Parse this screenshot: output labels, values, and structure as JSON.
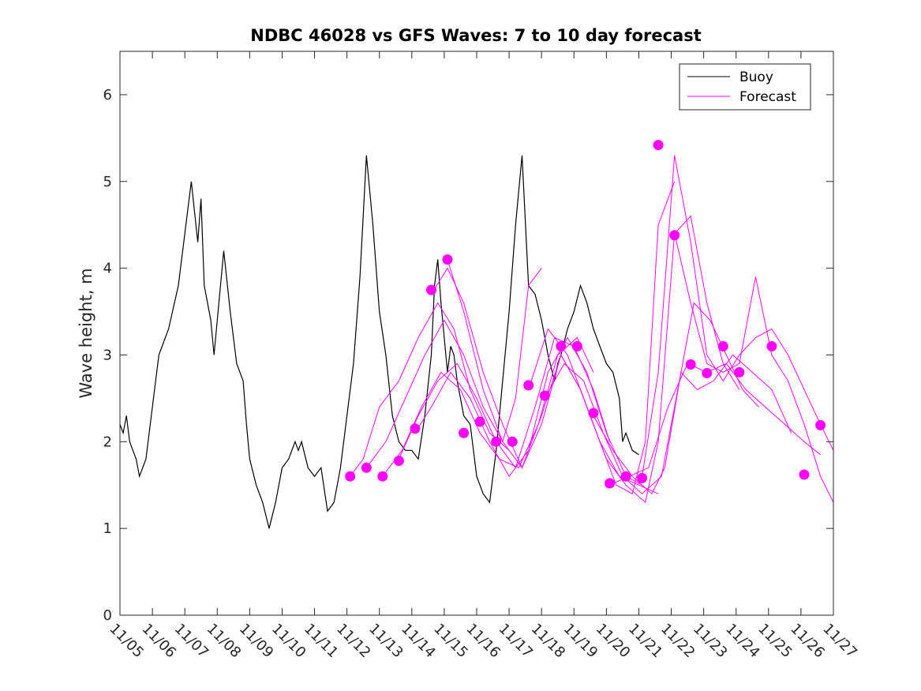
{
  "chart_data": {
    "type": "line",
    "title": "NDBC 46028 vs GFS Waves: 7 to 10 day forecast",
    "xlabel": "",
    "ylabel": "Wave height, m",
    "xlim": [
      0,
      22
    ],
    "ylim": [
      0,
      6.5
    ],
    "grid": false,
    "legend_position": "top-right",
    "x_tick_labels": [
      "11/05",
      "11/06",
      "11/07",
      "11/08",
      "11/09",
      "11/10",
      "11/11",
      "11/12",
      "11/13",
      "11/14",
      "11/15",
      "11/16",
      "11/17",
      "11/18",
      "11/19",
      "11/20",
      "11/21",
      "11/22",
      "11/23",
      "11/24",
      "11/25",
      "11/26",
      "11/27"
    ],
    "y_ticks": [
      0,
      1,
      2,
      3,
      4,
      5,
      6
    ],
    "colors": {
      "buoy": "#000000",
      "forecast": "#ff00ff",
      "marker": "#ff00ff"
    },
    "series": [
      {
        "name": "Buoy",
        "x": [
          0,
          0.1,
          0.2,
          0.3,
          0.5,
          0.6,
          0.8,
          1.0,
          1.2,
          1.5,
          1.8,
          2.0,
          2.2,
          2.4,
          2.5,
          2.6,
          2.8,
          2.9,
          3.0,
          3.2,
          3.4,
          3.5,
          3.6,
          3.8,
          3.9,
          4.0,
          4.2,
          4.4,
          4.6,
          4.8,
          5.0,
          5.2,
          5.4,
          5.5,
          5.6,
          5.8,
          6.0,
          6.2,
          6.4,
          6.6,
          6.8,
          7.0,
          7.2,
          7.4,
          7.6,
          7.8,
          8.0,
          8.2,
          8.4,
          8.6,
          8.8,
          9.0,
          9.2,
          9.4,
          9.6,
          9.7,
          9.8,
          9.9,
          10.0,
          10.1,
          10.2,
          10.3,
          10.4,
          10.6,
          10.8,
          11.0,
          11.2,
          11.4,
          11.6,
          11.8,
          12.0,
          12.2,
          12.4,
          12.6,
          12.8,
          13.0,
          13.2,
          13.4,
          13.5,
          13.6,
          13.8,
          14.0,
          14.2,
          14.4,
          14.6,
          14.8,
          15.0,
          15.2,
          15.4,
          15.5,
          15.6,
          15.8,
          16.0,
          16.2,
          16.4,
          16.6,
          16.8,
          16.9,
          17.0,
          17.2,
          17.4,
          17.6,
          17.7,
          17.8,
          18.0,
          18.2,
          18.4,
          18.6,
          18.8,
          19.0,
          19.2,
          19.4,
          19.6,
          19.8,
          20.0,
          20.2,
          20.4,
          20.6,
          20.8,
          21.0,
          21.2,
          21.4,
          21.6,
          21.8,
          22.0
        ],
        "y": [
          2.2,
          2.1,
          2.3,
          2.0,
          1.8,
          1.6,
          1.8,
          2.4,
          3.0,
          3.3,
          3.8,
          4.4,
          5.0,
          4.3,
          4.8,
          3.8,
          3.4,
          3.0,
          3.4,
          4.2,
          3.5,
          3.2,
          2.9,
          2.7,
          2.2,
          1.8,
          1.5,
          1.3,
          1.0,
          1.3,
          1.7,
          1.8,
          2.0,
          1.9,
          2.0,
          1.7,
          1.6,
          1.7,
          1.2,
          1.3,
          1.7,
          2.3,
          2.9,
          3.9,
          5.3,
          4.5,
          3.5,
          3.0,
          2.3,
          2.0,
          1.9,
          1.9,
          1.8,
          2.3,
          3.0,
          3.8,
          4.1,
          3.6,
          3.2,
          2.8,
          3.1,
          3.0,
          2.7,
          2.3,
          2.2,
          1.6,
          1.4,
          1.3,
          1.9,
          2.7,
          3.5,
          4.5,
          5.3,
          3.8,
          3.7,
          3.4,
          3.0,
          2.7,
          2.9,
          3.0,
          3.3,
          3.5,
          3.8,
          3.6,
          3.3,
          3.1,
          2.9,
          2.8,
          2.5,
          2.0,
          2.1,
          1.9,
          1.85,
          null,
          null,
          null,
          null,
          null,
          null,
          null,
          null,
          null,
          null,
          null,
          null,
          null,
          null,
          null,
          null,
          null,
          null,
          null,
          null,
          null,
          null,
          null,
          null,
          null,
          null,
          null,
          null,
          null,
          null,
          null,
          null
        ]
      },
      {
        "name": "Forecast",
        "runs": [
          {
            "x": [
              7.1,
              7.5,
              8.0,
              8.6,
              9.2,
              9.8,
              10.3,
              10.8,
              11.4,
              12.0
            ],
            "y": [
              1.6,
              1.8,
              2.4,
              2.7,
              3.2,
              3.6,
              3.3,
              2.6,
              2.1,
              1.9
            ]
          },
          {
            "x": [
              7.6,
              8.2,
              8.8,
              9.4,
              10.0,
              10.6,
              11.2,
              11.8,
              12.2,
              12.6,
              13.0
            ],
            "y": [
              1.7,
              2.0,
              2.5,
              3.0,
              3.4,
              3.0,
              2.4,
              2.0,
              2.5,
              3.8,
              4.0
            ]
          },
          {
            "x": [
              8.1,
              8.7,
              9.3,
              9.9,
              10.5,
              11.1,
              11.7,
              12.3,
              12.9,
              13.5,
              14.1,
              14.6
            ],
            "y": [
              1.6,
              1.9,
              2.4,
              2.8,
              2.6,
              2.1,
              1.8,
              1.7,
              2.2,
              3.0,
              3.2,
              2.8
            ]
          },
          {
            "x": [
              8.6,
              9.2,
              9.8,
              10.4,
              11.0,
              11.6,
              12.2,
              12.8,
              13.4,
              14.0,
              14.6,
              15.1
            ],
            "y": [
              1.8,
              2.3,
              2.7,
              2.9,
              2.5,
              2.0,
              1.7,
              2.4,
              3.2,
              3.1,
              2.6,
              2.0
            ]
          },
          {
            "x": [
              9.1,
              9.6,
              10.2,
              10.8,
              11.4,
              12.0,
              12.6,
              13.2,
              13.8,
              14.4,
              15.0,
              15.6,
              16.1
            ],
            "y": [
              2.1,
              2.4,
              2.8,
              2.5,
              2.0,
              1.6,
              1.9,
              2.8,
              3.2,
              2.8,
              2.1,
              1.6,
              1.5
            ]
          },
          {
            "x": [
              9.6,
              10.1,
              10.6,
              11.2,
              11.8,
              12.4,
              13.0,
              13.6,
              14.2,
              14.8,
              15.4,
              16.0,
              16.6
            ],
            "y": [
              3.7,
              4.0,
              3.6,
              2.8,
              2.2,
              1.7,
              2.2,
              3.0,
              2.6,
              2.0,
              1.6,
              1.5,
              1.4
            ]
          },
          {
            "x": [
              10.1,
              10.6,
              11.2,
              11.8,
              12.4,
              13.0,
              13.6,
              14.2,
              14.8,
              15.3,
              15.8,
              16.2,
              16.6,
              17.1
            ],
            "y": [
              4.1,
              3.5,
              2.6,
              2.0,
              1.7,
              2.3,
              3.0,
              2.6,
              2.0,
              1.5,
              1.4,
              2.0,
              4.5,
              5.0
            ]
          },
          {
            "x": [
              12.6,
              13.2,
              13.8,
              14.4,
              15.0,
              15.6,
              16.2,
              16.6,
              17.1,
              17.6,
              18.1,
              18.6,
              19.1
            ],
            "y": [
              2.6,
              3.3,
              3.0,
              2.4,
              1.8,
              1.5,
              1.3,
              2.0,
              4.4,
              4.6,
              3.6,
              2.9,
              2.6
            ]
          },
          {
            "x": [
              13.1,
              13.7,
              14.3,
              14.9,
              15.5,
              16.1,
              16.7,
              17.2,
              17.7,
              18.2,
              18.7,
              19.2,
              19.7
            ],
            "y": [
              2.5,
              2.9,
              2.7,
              2.1,
              1.6,
              1.4,
              1.6,
              2.6,
              3.6,
              3.4,
              3.0,
              2.6,
              2.4
            ]
          },
          {
            "x": [
              14.6,
              15.2,
              15.8,
              16.4,
              16.8,
              17.3,
              17.8,
              18.3,
              18.9,
              19.5,
              20.1,
              20.7
            ],
            "y": [
              2.3,
              1.9,
              1.6,
              1.4,
              1.7,
              2.8,
              2.6,
              2.7,
              3.0,
              2.8,
              2.6,
              2.1
            ]
          },
          {
            "x": [
              15.1,
              15.7,
              16.3,
              16.9,
              17.5,
              18.1,
              18.7,
              19.3,
              19.9,
              20.5,
              21.1,
              21.6
            ],
            "y": [
              1.5,
              1.6,
              1.7,
              2.4,
              2.9,
              2.8,
              2.9,
              2.6,
              2.4,
              2.2,
              2.0,
              1.85
            ]
          },
          {
            "x": [
              16.1,
              16.6,
              17.1,
              17.6,
              18.1,
              18.6,
              19.1,
              19.6,
              20.1,
              20.6,
              21.1,
              21.6,
              22.0
            ],
            "y": [
              1.6,
              2.8,
              5.3,
              4.3,
              3.0,
              2.7,
              3.0,
              3.2,
              3.3,
              3.0,
              2.6,
              2.2,
              1.9
            ]
          },
          {
            "x": [
              17.1,
              17.6,
              18.1,
              18.6,
              19.1,
              19.6,
              20.1,
              20.6,
              21.1,
              21.6,
              22.0
            ],
            "y": [
              4.4,
              3.6,
              2.9,
              2.8,
              2.9,
              3.9,
              3.0,
              2.7,
              2.2,
              1.6,
              1.3
            ]
          }
        ]
      }
    ],
    "markers": [
      {
        "x": 7.1,
        "y": 1.6
      },
      {
        "x": 7.6,
        "y": 1.7
      },
      {
        "x": 8.1,
        "y": 1.6
      },
      {
        "x": 8.6,
        "y": 1.78
      },
      {
        "x": 9.1,
        "y": 2.15
      },
      {
        "x": 9.6,
        "y": 3.75
      },
      {
        "x": 10.1,
        "y": 4.1
      },
      {
        "x": 10.6,
        "y": 2.1
      },
      {
        "x": 11.1,
        "y": 2.23
      },
      {
        "x": 11.6,
        "y": 2.0
      },
      {
        "x": 12.1,
        "y": 2.0
      },
      {
        "x": 12.6,
        "y": 2.65
      },
      {
        "x": 13.1,
        "y": 2.53
      },
      {
        "x": 13.6,
        "y": 3.1
      },
      {
        "x": 14.1,
        "y": 3.1
      },
      {
        "x": 14.6,
        "y": 2.33
      },
      {
        "x": 15.1,
        "y": 1.52
      },
      {
        "x": 15.6,
        "y": 1.6
      },
      {
        "x": 16.1,
        "y": 1.58
      },
      {
        "x": 16.6,
        "y": 5.42
      },
      {
        "x": 17.1,
        "y": 4.38
      },
      {
        "x": 17.6,
        "y": 2.89
      },
      {
        "x": 18.1,
        "y": 2.79
      },
      {
        "x": 18.6,
        "y": 3.1
      },
      {
        "x": 19.1,
        "y": 2.8
      },
      {
        "x": 20.1,
        "y": 3.1
      },
      {
        "x": 21.1,
        "y": 1.62
      },
      {
        "x": 21.6,
        "y": 2.19
      }
    ],
    "legend": [
      {
        "label": "Buoy",
        "color": "#000000"
      },
      {
        "label": "Forecast",
        "color": "#ff00ff"
      }
    ]
  }
}
